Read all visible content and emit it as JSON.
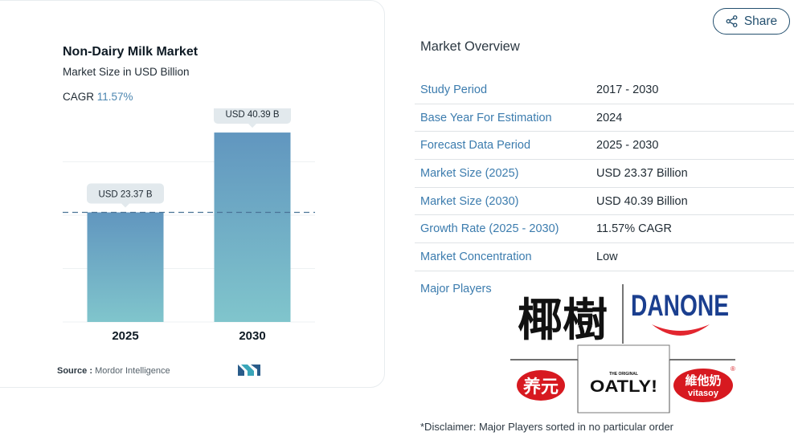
{
  "chart_data": {
    "type": "bar",
    "title": "Non-Dairy Milk Market",
    "subtitle": "Market Size in USD Billion",
    "cagr_label": "CAGR",
    "cagr_value": "11.57%",
    "categories": [
      "2025",
      "2030"
    ],
    "values": [
      23.37,
      40.39
    ],
    "data_labels": [
      "USD 23.37 B",
      "USD 40.39 B"
    ],
    "ylim": [
      0,
      44
    ],
    "grid": true,
    "reference_line": 23.37,
    "colors": {
      "bar_top": "#6196bf",
      "bar_bottom": "#80c5cc",
      "label_bg": "#e2e9ed",
      "reference": "#4a7396"
    }
  },
  "source": {
    "label": "Source :",
    "text": "Mordor Intelligence"
  },
  "share": {
    "label": "Share",
    "icon": "share-icon"
  },
  "overview": {
    "title": "Market Overview",
    "rows": [
      {
        "label": "Study Period",
        "value": "2017 - 2030"
      },
      {
        "label": "Base Year For Estimation",
        "value": "2024"
      },
      {
        "label": "Forecast Data Period",
        "value": "2025 - 2030"
      },
      {
        "label": "Market Size (2025)",
        "value": "USD 23.37 Billion"
      },
      {
        "label": "Market Size (2030)",
        "value": "USD 40.39 Billion"
      },
      {
        "label": "Growth Rate (2025 - 2030)",
        "value": "11.57% CAGR"
      },
      {
        "label": "Market Concentration",
        "value": "Low"
      }
    ],
    "major_players_label": "Major Players",
    "players": [
      "椰樹",
      "DANONE",
      "养元",
      "OATLY!",
      "維他奶 vitasoy"
    ],
    "disclaimer": "*Disclaimer: Major Players sorted in no particular order"
  }
}
